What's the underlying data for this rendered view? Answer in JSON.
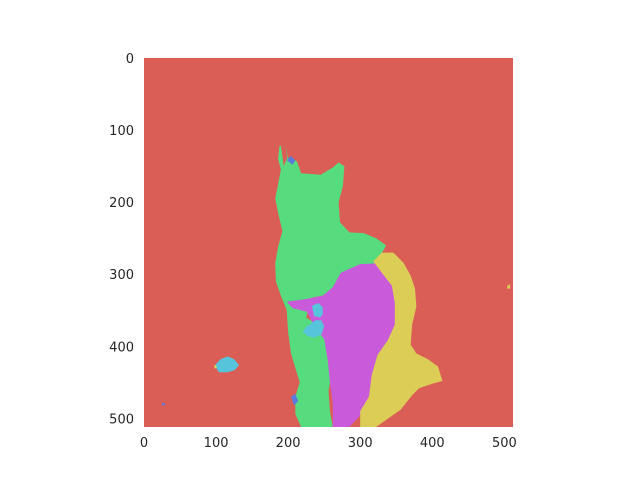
{
  "chart_data": {
    "type": "heatmap",
    "title": "",
    "xlabel": "",
    "ylabel": "",
    "xlim": [
      0,
      512
    ],
    "ylim": [
      512,
      0
    ],
    "grid": false,
    "x_ticks": [
      0,
      100,
      200,
      300,
      400,
      500
    ],
    "y_ticks": [
      0,
      100,
      200,
      300,
      400,
      500
    ],
    "background_color": "#db5e56",
    "segments": [
      {
        "label_index": 0,
        "color": "#db5e56",
        "polygon": [
          [
            0,
            0
          ],
          [
            512,
            0
          ],
          [
            512,
            512
          ],
          [
            0,
            512
          ]
        ]
      },
      {
        "label_index": 1,
        "color": "#56db7f",
        "polygon": [
          [
            188,
            122
          ],
          [
            196,
            122
          ],
          [
            200,
            138
          ],
          [
            212,
            143
          ],
          [
            218,
            160
          ],
          [
            245,
            162
          ],
          [
            262,
            152
          ],
          [
            270,
            145
          ],
          [
            278,
            150
          ],
          [
            276,
            178
          ],
          [
            270,
            200
          ],
          [
            272,
            228
          ],
          [
            285,
            242
          ],
          [
            305,
            243
          ],
          [
            322,
            250
          ],
          [
            336,
            260
          ],
          [
            322,
            285
          ],
          [
            305,
            293
          ],
          [
            290,
            305
          ],
          [
            276,
            313
          ],
          [
            255,
            328
          ],
          [
            232,
            333
          ],
          [
            225,
            360
          ],
          [
            252,
            378
          ],
          [
            260,
            410
          ],
          [
            260,
            440
          ],
          [
            256,
            462
          ],
          [
            258,
            490
          ],
          [
            262,
            512
          ],
          [
            218,
            512
          ],
          [
            210,
            494
          ],
          [
            210,
            470
          ],
          [
            216,
            450
          ],
          [
            210,
            430
          ],
          [
            204,
            410
          ],
          [
            200,
            380
          ],
          [
            198,
            350
          ],
          [
            190,
            330
          ],
          [
            183,
            310
          ],
          [
            182,
            285
          ],
          [
            186,
            262
          ],
          [
            192,
            240
          ],
          [
            186,
            215
          ],
          [
            182,
            195
          ],
          [
            186,
            175
          ],
          [
            190,
            155
          ],
          [
            186,
            140
          ]
        ]
      },
      {
        "label_index": 2,
        "color": "#db5e56",
        "polygon": [
          [
            190,
            122
          ],
          [
            196,
            122
          ],
          [
            199,
            138
          ],
          [
            194,
            150
          ]
        ]
      },
      {
        "label_index": 3,
        "color": "#c95bdb",
        "polygon": [
          [
            273,
            298
          ],
          [
            300,
            286
          ],
          [
            322,
            285
          ],
          [
            336,
            292
          ],
          [
            346,
            312
          ],
          [
            350,
            338
          ],
          [
            350,
            378
          ],
          [
            338,
            400
          ],
          [
            324,
            420
          ],
          [
            316,
            450
          ],
          [
            310,
            480
          ],
          [
            300,
            496
          ],
          [
            285,
            512
          ],
          [
            262,
            512
          ],
          [
            262,
            480
          ],
          [
            258,
            450
          ],
          [
            255,
            420
          ],
          [
            250,
            390
          ],
          [
            236,
            372
          ],
          [
            226,
            352
          ],
          [
            206,
            347
          ],
          [
            198,
            338
          ],
          [
            222,
            335
          ],
          [
            248,
            330
          ],
          [
            262,
            318
          ]
        ]
      },
      {
        "label_index": 4,
        "color": "#dbcd56",
        "polygon": [
          [
            318,
            282
          ],
          [
            330,
            270
          ],
          [
            346,
            270
          ],
          [
            360,
            284
          ],
          [
            370,
            302
          ],
          [
            376,
            320
          ],
          [
            378,
            345
          ],
          [
            372,
            370
          ],
          [
            370,
            398
          ],
          [
            378,
            410
          ],
          [
            394,
            418
          ],
          [
            408,
            428
          ],
          [
            414,
            448
          ],
          [
            400,
            452
          ],
          [
            382,
            458
          ],
          [
            372,
            468
          ],
          [
            356,
            488
          ],
          [
            322,
            512
          ],
          [
            300,
            512
          ],
          [
            300,
            490
          ],
          [
            312,
            470
          ],
          [
            316,
            440
          ],
          [
            324,
            412
          ],
          [
            338,
            392
          ],
          [
            348,
            370
          ],
          [
            348,
            340
          ],
          [
            344,
            316
          ],
          [
            330,
            298
          ]
        ]
      },
      {
        "label_index": 5,
        "color": "#56c5db",
        "polygon": [
          [
            225,
            373
          ],
          [
            232,
            368
          ],
          [
            238,
            364
          ],
          [
            246,
            364
          ],
          [
            250,
            372
          ],
          [
            246,
            384
          ],
          [
            236,
            388
          ],
          [
            228,
            386
          ],
          [
            220,
            380
          ]
        ]
      },
      {
        "label_index": 6,
        "color": "#56c5db",
        "polygon": [
          [
            233,
            344
          ],
          [
            242,
            340
          ],
          [
            248,
            346
          ],
          [
            248,
            356
          ],
          [
            244,
            360
          ],
          [
            236,
            358
          ]
        ]
      },
      {
        "label_index": 7,
        "color": "#56c5db",
        "polygon": [
          [
            98,
            427
          ],
          [
            106,
            418
          ],
          [
            116,
            414
          ],
          [
            125,
            418
          ],
          [
            132,
            426
          ],
          [
            126,
            433
          ],
          [
            116,
            436
          ],
          [
            104,
            436
          ]
        ]
      },
      {
        "label_index": 8,
        "color": "#5b7bdb",
        "polygon": [
          [
            198,
            142
          ],
          [
            204,
            136
          ],
          [
            210,
            142
          ],
          [
            206,
            148
          ]
        ]
      },
      {
        "label_index": 9,
        "color": "#5b7bdb",
        "polygon": [
          [
            204,
            470
          ],
          [
            210,
            466
          ],
          [
            214,
            476
          ],
          [
            208,
            482
          ]
        ]
      },
      {
        "label_index": 10,
        "color": "#5b7bdb",
        "polygon": [
          [
            25,
            479
          ],
          [
            29,
            479
          ],
          [
            29,
            482
          ],
          [
            25,
            482
          ]
        ]
      },
      {
        "label_index": 11,
        "color": "#dbcd56",
        "polygon": [
          [
            97,
            427
          ],
          [
            100,
            426
          ],
          [
            101,
            430
          ],
          [
            98,
            431
          ]
        ]
      },
      {
        "label_index": 12,
        "color": "#dbcd56",
        "polygon": [
          [
            504,
            316
          ],
          [
            508,
            314
          ],
          [
            508,
            320
          ],
          [
            504,
            320
          ]
        ]
      }
    ]
  }
}
